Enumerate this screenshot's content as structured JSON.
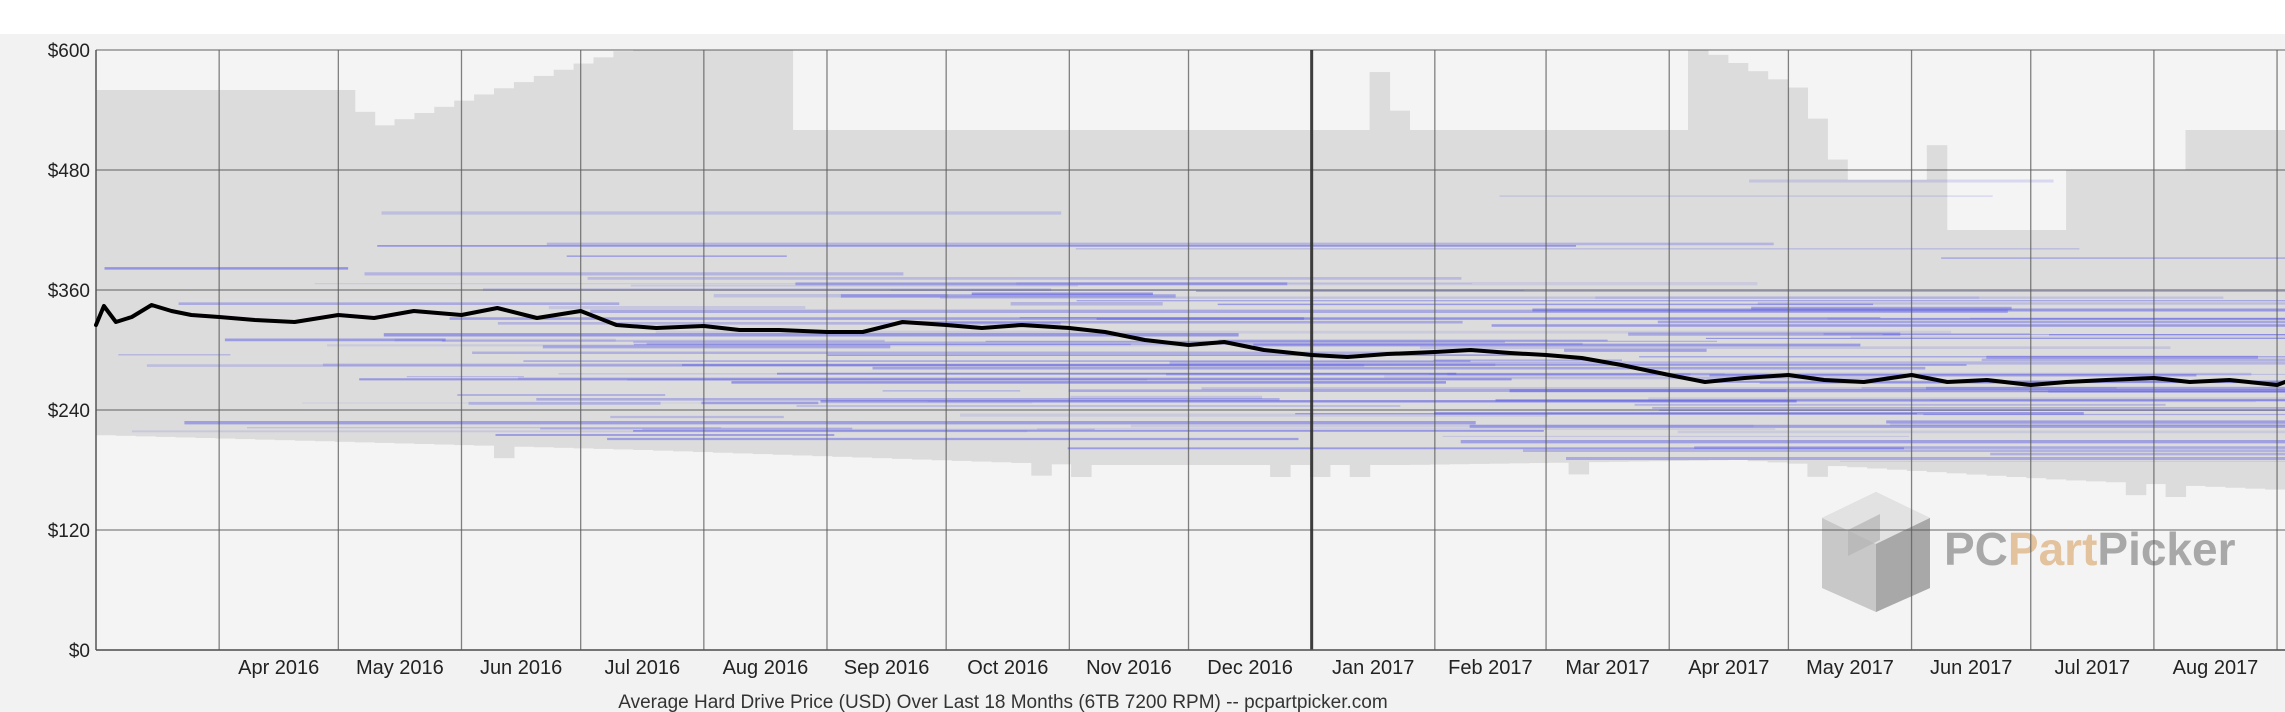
{
  "colors": {
    "page_background": "#ffffff",
    "outer_band": "#f2f2f2",
    "plot_background": "#f4f4f4",
    "price_range_fill": "#dcdcdc",
    "listing_lines": "#5a5ae6",
    "average_line": "#000000",
    "grid_line": "#5a5a5a",
    "watermark_grey": "#a8a8a8",
    "watermark_orange": "#e3c29e"
  },
  "watermark": {
    "pc": "PC",
    "part": "Part",
    "picker": "Picker",
    "logo_icon": "cube-logo-icon"
  },
  "chart_data": {
    "type": "line",
    "title": "Average Hard Drive Price (USD) Over Last 18 Months (6TB 7200 RPM) -- pcpartpicker.com",
    "xlabel": "",
    "ylabel": "",
    "ylim": [
      0,
      600
    ],
    "xlim": [
      "2016-03-01",
      "2017-09-03"
    ],
    "grid": true,
    "legend": "none",
    "y_ticks": [
      {
        "value": 0,
        "label": "$0"
      },
      {
        "value": 120,
        "label": "$120"
      },
      {
        "value": 240,
        "label": "$240"
      },
      {
        "value": 360,
        "label": "$360"
      },
      {
        "value": 480,
        "label": "$480"
      },
      {
        "value": 600,
        "label": "$600"
      }
    ],
    "x_ticks": [
      {
        "date": "2016-04-01",
        "label": "Apr 2016"
      },
      {
        "date": "2016-05-01",
        "label": "May 2016"
      },
      {
        "date": "2016-06-01",
        "label": "Jun 2016"
      },
      {
        "date": "2016-07-01",
        "label": "Jul 2016"
      },
      {
        "date": "2016-08-01",
        "label": "Aug 2016"
      },
      {
        "date": "2016-09-01",
        "label": "Sep 2016"
      },
      {
        "date": "2016-10-01",
        "label": "Oct 2016"
      },
      {
        "date": "2016-11-01",
        "label": "Nov 2016"
      },
      {
        "date": "2016-12-01",
        "label": "Dec 2016"
      },
      {
        "date": "2017-01-01",
        "label": "Jan 2017"
      },
      {
        "date": "2017-02-01",
        "label": "Feb 2017"
      },
      {
        "date": "2017-03-01",
        "label": "Mar 2017"
      },
      {
        "date": "2017-04-01",
        "label": "Apr 2017"
      },
      {
        "date": "2017-05-01",
        "label": "May 2017"
      },
      {
        "date": "2017-06-01",
        "label": "Jun 2017"
      },
      {
        "date": "2017-07-01",
        "label": "Jul 2017"
      },
      {
        "date": "2017-08-01",
        "label": "Aug 2017"
      },
      {
        "date": "2017-09-01",
        "label": ""
      }
    ],
    "series": [
      {
        "x": [
          "2016-03-01",
          "2016-03-03",
          "2016-03-06",
          "2016-03-10",
          "2016-03-15",
          "2016-03-20",
          "2016-03-25",
          "2016-04-01",
          "2016-04-10",
          "2016-04-20",
          "2016-05-01",
          "2016-05-10",
          "2016-05-20",
          "2016-06-01",
          "2016-06-10",
          "2016-06-20",
          "2016-07-01",
          "2016-07-10",
          "2016-07-20",
          "2016-08-01",
          "2016-08-10",
          "2016-08-20",
          "2016-09-01",
          "2016-09-10",
          "2016-09-20",
          "2016-10-01",
          "2016-10-10",
          "2016-10-20",
          "2016-11-01",
          "2016-11-10",
          "2016-11-20",
          "2016-12-01",
          "2016-12-10",
          "2016-12-20",
          "2017-01-01",
          "2017-01-10",
          "2017-01-20",
          "2017-02-01",
          "2017-02-10",
          "2017-02-20",
          "2017-03-01",
          "2017-03-10",
          "2017-03-20",
          "2017-04-01",
          "2017-04-10",
          "2017-04-20",
          "2017-05-01",
          "2017-05-10",
          "2017-05-20",
          "2017-06-01",
          "2017-06-10",
          "2017-06-20",
          "2017-07-01",
          "2017-07-10",
          "2017-07-20",
          "2017-08-01",
          "2017-08-10",
          "2017-08-20",
          "2017-09-01",
          "2017-09-03"
        ],
        "y": [
          325,
          344,
          328,
          333,
          345,
          339,
          335,
          333,
          330,
          328,
          335,
          332,
          339,
          335,
          342,
          332,
          339,
          325,
          322,
          324,
          320,
          320,
          318,
          318,
          328,
          325,
          322,
          325,
          322,
          318,
          310,
          305,
          308,
          300,
          295,
          293,
          296,
          298,
          300,
          297,
          295,
          292,
          285,
          275,
          268,
          272,
          275,
          270,
          268,
          275,
          268,
          270,
          265,
          268,
          270,
          272,
          268,
          270,
          265,
          268
        ]
      }
    ]
  }
}
